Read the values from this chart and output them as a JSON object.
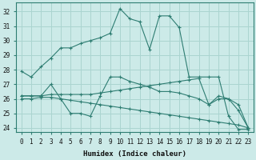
{
  "xlabel": "Humidex (Indice chaleur)",
  "bg_color": "#cceae8",
  "grid_color": "#aad4d0",
  "line_color": "#2e7d72",
  "xlim": [
    -0.5,
    23.5
  ],
  "ylim": [
    23.7,
    32.6
  ],
  "yticks": [
    24,
    25,
    26,
    27,
    28,
    29,
    30,
    31,
    32
  ],
  "xticks": [
    0,
    1,
    2,
    3,
    4,
    5,
    6,
    7,
    8,
    9,
    10,
    11,
    12,
    13,
    14,
    15,
    16,
    17,
    18,
    19,
    20,
    21,
    22,
    23
  ],
  "series": [
    {
      "x": [
        0,
        1,
        2,
        3,
        4,
        5,
        6,
        7,
        8,
        9,
        10,
        11,
        12,
        13,
        14,
        15,
        16,
        17,
        18,
        19,
        20,
        21,
        22,
        23
      ],
      "y": [
        27.9,
        27.5,
        28.2,
        28.8,
        29.5,
        29.5,
        29.8,
        30.0,
        30.2,
        30.5,
        32.2,
        31.5,
        31.3,
        29.4,
        31.7,
        31.7,
        30.9,
        27.5,
        27.5,
        27.5,
        27.5,
        24.8,
        23.9,
        23.9
      ]
    },
    {
      "x": [
        0,
        1,
        2,
        3,
        4,
        5,
        6,
        7,
        8,
        9,
        10,
        11,
        12,
        13,
        14,
        15,
        16,
        17,
        18,
        19,
        20,
        21,
        22,
        23
      ],
      "y": [
        26.2,
        26.2,
        26.2,
        26.3,
        26.3,
        26.3,
        26.3,
        26.3,
        26.4,
        26.5,
        26.6,
        26.7,
        26.8,
        26.9,
        27.0,
        27.1,
        27.2,
        27.3,
        27.4,
        25.6,
        26.2,
        26.0,
        25.6,
        24.0
      ]
    },
    {
      "x": [
        0,
        1,
        2,
        3,
        4,
        5,
        6,
        7,
        8,
        9,
        10,
        11,
        12,
        13,
        14,
        15,
        16,
        17,
        18,
        19,
        20,
        21,
        22,
        23
      ],
      "y": [
        26.0,
        26.0,
        26.1,
        26.1,
        26.0,
        25.9,
        25.8,
        25.7,
        25.6,
        25.5,
        25.4,
        25.3,
        25.2,
        25.1,
        25.0,
        24.9,
        24.8,
        24.7,
        24.6,
        24.5,
        24.4,
        24.3,
        24.2,
        24.0
      ]
    },
    {
      "x": [
        0,
        1,
        2,
        3,
        4,
        5,
        6,
        7,
        8,
        9,
        10,
        11,
        12,
        13,
        14,
        15,
        16,
        17,
        18,
        19,
        20,
        21,
        22,
        23
      ],
      "y": [
        26.2,
        26.2,
        26.2,
        27.0,
        26.0,
        25.0,
        25.0,
        24.8,
        26.2,
        27.5,
        27.5,
        27.2,
        27.0,
        26.8,
        26.5,
        26.5,
        26.4,
        26.2,
        26.0,
        25.6,
        26.0,
        26.0,
        25.2,
        24.0
      ]
    }
  ]
}
